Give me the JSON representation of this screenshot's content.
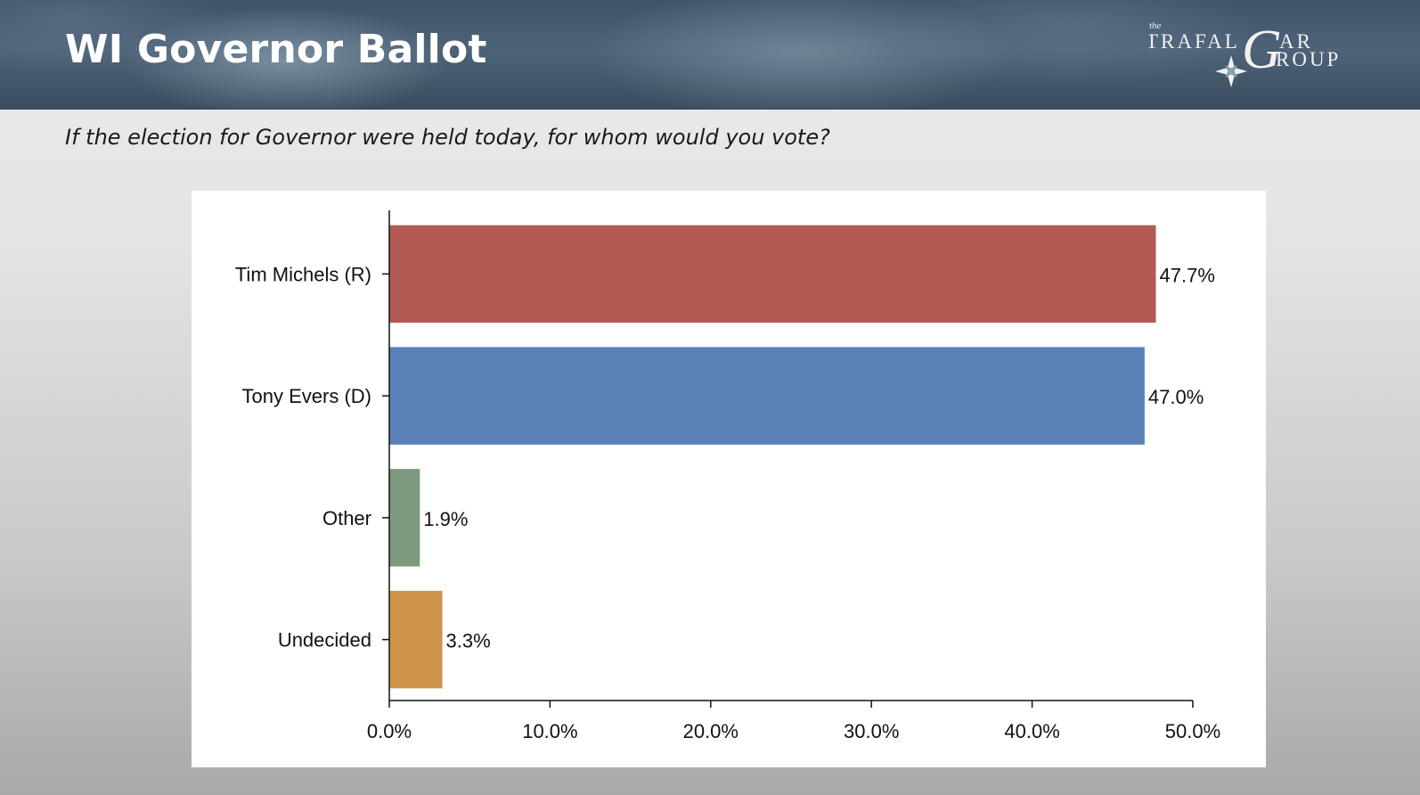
{
  "header": {
    "title": "WI Governor Ballot",
    "logo": {
      "prefix": "the",
      "line1": "TRAFAL",
      "big_letter": "G",
      "line1_end": "AR",
      "line2": "ROUP"
    }
  },
  "question": "If the election for Governor were held today, for whom would you vote?",
  "chart_data": {
    "type": "bar",
    "orientation": "horizontal",
    "title": "",
    "xlabel": "",
    "ylabel": "",
    "categories": [
      "Tim Michels (R)",
      "Tony Evers (D)",
      "Other",
      "Undecided"
    ],
    "values": [
      47.7,
      47.0,
      1.9,
      3.3
    ],
    "value_labels": [
      "47.7%",
      "47.0%",
      "1.9%",
      "3.3%"
    ],
    "colors": [
      "#b15a54",
      "#5a80b8",
      "#7e9a7e",
      "#cd944a"
    ],
    "xlim": [
      0,
      50
    ],
    "xticks": [
      0,
      10,
      20,
      30,
      40,
      50
    ],
    "xtick_labels": [
      "0.0%",
      "10.0%",
      "20.0%",
      "30.0%",
      "40.0%",
      "50.0%"
    ],
    "grid": false,
    "legend": "none"
  }
}
